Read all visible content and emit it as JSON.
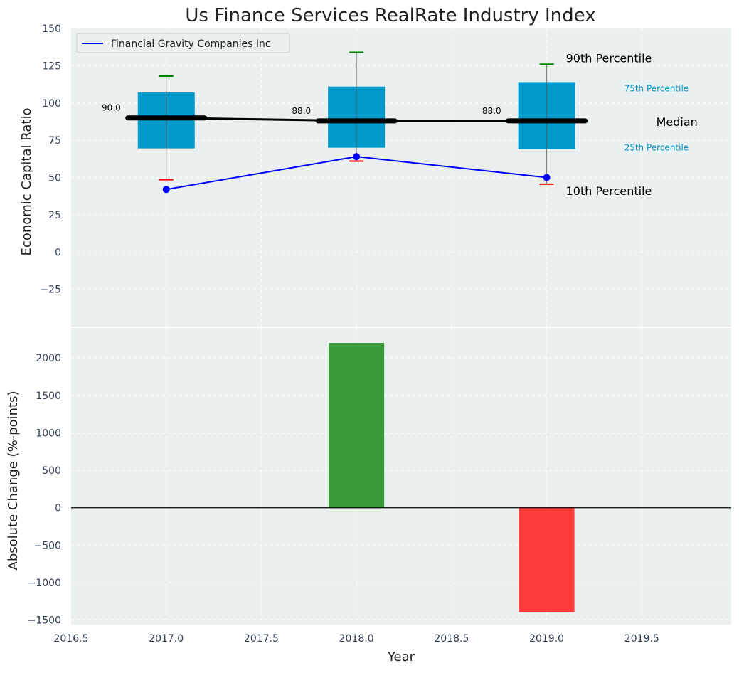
{
  "chart_data": [
    {
      "type": "box",
      "title": "Us Finance Services RealRate Industry Index",
      "xlabel": "",
      "ylabel": "Economic Capital Ratio",
      "ylim": [
        -50,
        150
      ],
      "xlim": [
        2016.5,
        2019.97
      ],
      "yticks": [
        -25,
        0,
        25,
        50,
        75,
        100,
        125,
        150
      ],
      "ytick_labels": [
        "−25",
        "0",
        "25",
        "50",
        "75",
        "100",
        "125",
        "150"
      ],
      "grid": true,
      "legend": {
        "position": "top-left",
        "entries": [
          {
            "label": "Financial Gravity Companies Inc",
            "color": "#0000ff"
          }
        ]
      },
      "boxes": [
        {
          "x": 2017,
          "p10": 48.5,
          "p25": 69.5,
          "median": 90.0,
          "p75": 107,
          "p90": 118,
          "median_label": "90.0"
        },
        {
          "x": 2018,
          "p10": 61,
          "p25": 70,
          "median": 88.0,
          "p75": 111,
          "p90": 134,
          "median_label": "88.0"
        },
        {
          "x": 2019,
          "p10": 45.5,
          "p25": 69,
          "median": 88.0,
          "p75": 114,
          "p90": 126,
          "median_label": "88.0"
        }
      ],
      "series": [
        {
          "name": "Financial Gravity Companies Inc",
          "color": "#0000ff",
          "x": [
            2017,
            2018,
            2019
          ],
          "values": [
            42,
            64,
            50
          ]
        }
      ],
      "annotations": {
        "p90": "90th Percentile",
        "p75": "75th Percentile",
        "median": "Median",
        "p25": "25th Percentile",
        "p10": "10th Percentile"
      },
      "colors": {
        "box": "#0099cc",
        "p90_cap": "#008000",
        "p10_cap": "#ff0000",
        "median": "#000000",
        "background": "#eaeff0",
        "label_accent": "#0099cc"
      }
    },
    {
      "type": "bar",
      "xlabel": "Year",
      "ylabel": "Absolute Change (%-points)",
      "ylim": [
        -1560,
        2400
      ],
      "xlim": [
        2016.5,
        2019.97
      ],
      "yticks": [
        -1500,
        -1000,
        -500,
        0,
        500,
        1000,
        1500,
        2000
      ],
      "ytick_labels": [
        "−1500",
        "−1000",
        "−500",
        "0",
        "500",
        "1000",
        "1500",
        "2000"
      ],
      "xticks": [
        2016.5,
        2017.0,
        2017.5,
        2018.0,
        2018.5,
        2019.0,
        2019.5
      ],
      "xtick_labels": [
        "2016.5",
        "2017.0",
        "2017.5",
        "2018.0",
        "2018.5",
        "2019.0",
        "2019.5"
      ],
      "grid": true,
      "categories": [
        2018,
        2019
      ],
      "values": [
        2200,
        -1390
      ],
      "colors": {
        "positive": "#3a9a3a",
        "negative": "#ff3b3b",
        "background": "#eaeff0"
      }
    }
  ]
}
